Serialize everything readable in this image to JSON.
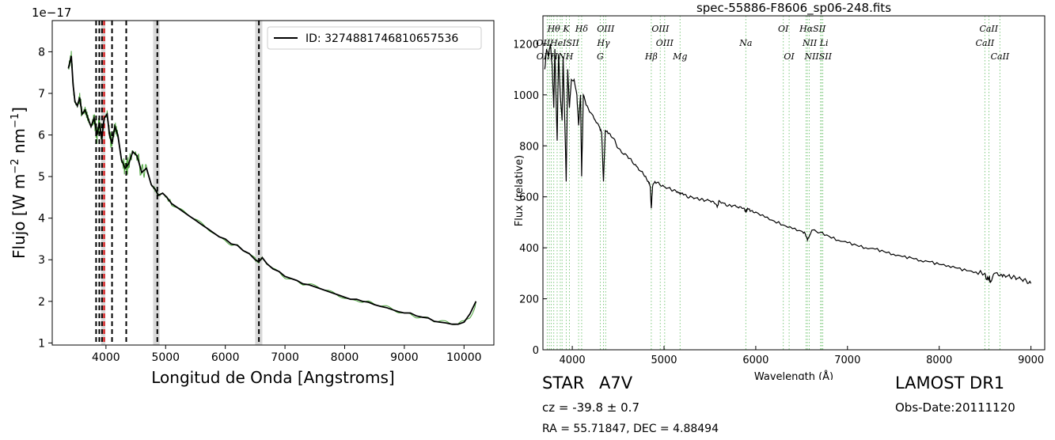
{
  "chart_data": [
    {
      "type": "line",
      "title": "",
      "xlabel": "Longitud de Onda [Angstroms]",
      "ylabel": "Flujo [W m$^{-2}$ nm$^{-1}$]",
      "ylabel_parts": {
        "base": "Flujo [W m",
        "exp1": "−2",
        "mid": " nm",
        "exp2": "−1",
        "end": "]"
      },
      "y_multiplier": "1e−17",
      "xlim": [
        3100,
        10500
      ],
      "ylim": [
        0.95,
        8.75
      ],
      "xticks": [
        4000,
        5000,
        6000,
        7000,
        8000,
        9000,
        10000
      ],
      "yticks": [
        1,
        2,
        3,
        4,
        5,
        6,
        7,
        8
      ],
      "legend": {
        "position": "top-right",
        "label": "ID: 3274881746810657536"
      },
      "grid": false,
      "colors": {
        "flux": "#000000",
        "raw": "#4aa43a",
        "marker_red": "#d62728",
        "band": "#d9d9d9"
      },
      "vlines_dashed": [
        3835,
        3889,
        3934,
        4102,
        4340,
        4861,
        6563
      ],
      "vline_red": 3969,
      "shaded_bands": [
        [
          3920,
          3990
        ],
        [
          4790,
          4900
        ],
        [
          6500,
          6620
        ]
      ],
      "series": [
        {
          "name": "ID: 3274881746810657536",
          "x": [
            3370,
            3420,
            3450,
            3480,
            3520,
            3560,
            3600,
            3650,
            3700,
            3750,
            3800,
            3850,
            3890,
            3930,
            3970,
            4020,
            4060,
            4100,
            4150,
            4200,
            4260,
            4320,
            4380,
            4450,
            4520,
            4600,
            4680,
            4760,
            4820,
            4880,
            4950,
            5020,
            5100,
            5200,
            5300,
            5400,
            5500,
            5600,
            5700,
            5800,
            5900,
            6000,
            6100,
            6200,
            6300,
            6400,
            6500,
            6560,
            6620,
            6700,
            6800,
            6900,
            7000,
            7100,
            7200,
            7300,
            7400,
            7500,
            7600,
            7700,
            7800,
            7900,
            8000,
            8100,
            8200,
            8300,
            8400,
            8500,
            8600,
            8700,
            8800,
            8900,
            9000,
            9100,
            9200,
            9300,
            9400,
            9500,
            9600,
            9700,
            9800,
            9900,
            10000,
            10100,
            10200
          ],
          "y": [
            7.6,
            7.9,
            7.2,
            6.8,
            6.7,
            6.9,
            6.5,
            6.6,
            6.4,
            6.2,
            6.4,
            6.0,
            6.3,
            5.9,
            6.4,
            6.5,
            6.0,
            5.8,
            6.2,
            6.0,
            5.4,
            5.2,
            5.3,
            5.6,
            5.5,
            5.1,
            5.2,
            4.8,
            4.7,
            4.55,
            4.6,
            4.5,
            4.35,
            4.25,
            4.15,
            4.05,
            3.95,
            3.85,
            3.75,
            3.65,
            3.55,
            3.5,
            3.38,
            3.35,
            3.22,
            3.15,
            3.0,
            2.95,
            3.05,
            2.9,
            2.78,
            2.72,
            2.6,
            2.55,
            2.5,
            2.42,
            2.4,
            2.35,
            2.3,
            2.25,
            2.2,
            2.15,
            2.1,
            2.05,
            2.05,
            2.0,
            1.98,
            1.92,
            1.88,
            1.85,
            1.8,
            1.75,
            1.72,
            1.72,
            1.65,
            1.62,
            1.6,
            1.52,
            1.5,
            1.48,
            1.45,
            1.45,
            1.5,
            1.7,
            2.0
          ]
        }
      ]
    },
    {
      "type": "line",
      "title": "spec-55886-F8606_sp06-248.fits",
      "xlabel": "Wavelength (Å)",
      "ylabel": "Flux (relative)",
      "xlim": [
        3680,
        9150
      ],
      "ylim": [
        0,
        1310
      ],
      "xticks": [
        4000,
        5000,
        6000,
        7000,
        8000,
        9000
      ],
      "yticks": [
        0,
        200,
        400,
        600,
        800,
        1000,
        1200
      ],
      "grid": false,
      "colors": {
        "flux": "#000000",
        "lines": "#7fc97f"
      },
      "line_markers": [
        {
          "label": "Hθ",
          "x": 3798,
          "row": 1
        },
        {
          "label": "K",
          "x": 3934,
          "row": 1
        },
        {
          "label": "Hδ",
          "x": 4102,
          "row": 1
        },
        {
          "label": "OIII",
          "x": 4364,
          "row": 1
        },
        {
          "label": "OIII",
          "x": 4960,
          "row": 1
        },
        {
          "label": "OI",
          "x": 6300,
          "row": 1
        },
        {
          "label": "HαSII",
          "x": 6620,
          "row": 1
        },
        {
          "label": "CaII",
          "x": 8540,
          "row": 1
        },
        {
          "label": "OIIHeISII",
          "x": 3840,
          "row": 2
        },
        {
          "label": "Hγ",
          "x": 4340,
          "row": 2
        },
        {
          "label": "OIII",
          "x": 5007,
          "row": 2
        },
        {
          "label": "Na",
          "x": 5892,
          "row": 2
        },
        {
          "label": "NII Li",
          "x": 6650,
          "row": 2
        },
        {
          "label": "CaII",
          "x": 8498,
          "row": 2
        },
        {
          "label": "OIIHNH",
          "x": 3810,
          "row": 3
        },
        {
          "label": "G",
          "x": 4305,
          "row": 3
        },
        {
          "label": "Hβ",
          "x": 4861,
          "row": 3
        },
        {
          "label": "Mg",
          "x": 5175,
          "row": 3
        },
        {
          "label": "OI",
          "x": 6364,
          "row": 3
        },
        {
          "label": "NIISII",
          "x": 6680,
          "row": 3
        },
        {
          "label": "CaII",
          "x": 8662,
          "row": 3
        }
      ],
      "vlines_dotted": [
        3727,
        3750,
        3771,
        3798,
        3835,
        3869,
        3889,
        3934,
        3969,
        4069,
        4102,
        4305,
        4340,
        4364,
        4861,
        4959,
        5007,
        5175,
        5892,
        6300,
        6364,
        6548,
        6563,
        6583,
        6707,
        6716,
        6731,
        8498,
        8542,
        8662
      ],
      "series": [
        {
          "name": "",
          "x": [
            3700,
            3720,
            3740,
            3760,
            3780,
            3798,
            3810,
            3835,
            3850,
            3869,
            3889,
            3900,
            3934,
            3950,
            3969,
            3990,
            4020,
            4050,
            4069,
            4090,
            4102,
            4120,
            4150,
            4200,
            4250,
            4300,
            4320,
            4340,
            4360,
            4400,
            4450,
            4500,
            4550,
            4600,
            4650,
            4700,
            4750,
            4800,
            4830,
            4850,
            4861,
            4875,
            4900,
            4950,
            5000,
            5050,
            5100,
            5150,
            5175,
            5200,
            5250,
            5300,
            5350,
            5400,
            5450,
            5500,
            5550,
            5580,
            5600,
            5650,
            5700,
            5750,
            5800,
            5850,
            5880,
            5892,
            5910,
            5950,
            6000,
            6100,
            6200,
            6300,
            6400,
            6500,
            6540,
            6563,
            6590,
            6620,
            6700,
            6800,
            6900,
            7000,
            7100,
            7200,
            7300,
            7400,
            7500,
            7600,
            7700,
            7800,
            7900,
            8000,
            8100,
            8200,
            8300,
            8400,
            8498,
            8520,
            8542,
            8560,
            8600,
            8662,
            8700,
            8750,
            8800,
            8850,
            8900,
            8950,
            9000
          ],
          "y": [
            1100,
            1180,
            1150,
            1200,
            1120,
            950,
            1180,
            820,
            1160,
            1000,
            900,
            1150,
            660,
            1100,
            950,
            1060,
            1060,
            1000,
            880,
            1000,
            680,
            1000,
            960,
            930,
            900,
            870,
            850,
            660,
            860,
            850,
            830,
            790,
            770,
            760,
            740,
            720,
            700,
            680,
            660,
            640,
            555,
            640,
            660,
            650,
            640,
            635,
            625,
            620,
            610,
            615,
            600,
            600,
            595,
            590,
            585,
            585,
            575,
            560,
            585,
            575,
            565,
            565,
            560,
            555,
            550,
            540,
            555,
            545,
            540,
            520,
            505,
            490,
            475,
            465,
            455,
            430,
            450,
            470,
            460,
            445,
            430,
            420,
            410,
            400,
            395,
            385,
            375,
            365,
            360,
            350,
            345,
            335,
            330,
            320,
            310,
            305,
            300,
            275,
            285,
            265,
            300,
            290,
            295,
            290,
            285,
            280,
            275,
            270,
            260
          ]
        }
      ]
    }
  ],
  "info": {
    "class": "STAR",
    "subclass": "A7V",
    "survey": "LAMOST DR1",
    "cz": "cz = -39.8 ± 0.7",
    "obs_date": "Obs-Date:20111120",
    "coords": "RA = 55.71847, DEC = 4.88494"
  }
}
